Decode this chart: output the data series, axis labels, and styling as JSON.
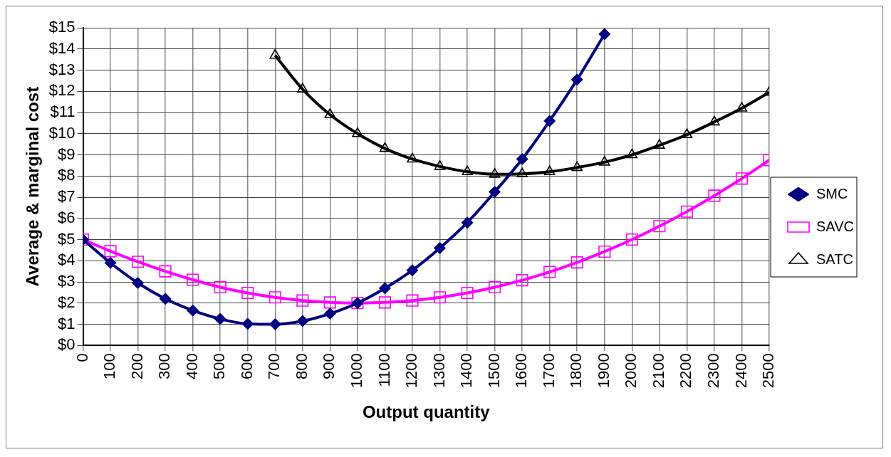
{
  "chart_data": {
    "type": "line",
    "xlabel": "Output quantity",
    "ylabel": "Average & marginal cost",
    "x": [
      0,
      100,
      200,
      300,
      400,
      500,
      600,
      700,
      800,
      900,
      1000,
      1100,
      1200,
      1300,
      1400,
      1500,
      1600,
      1700,
      1800,
      1900,
      2000,
      2100,
      2200,
      2300,
      2400,
      2500
    ],
    "series": [
      {
        "name": "SMC",
        "color": "#000080",
        "marker": "diamond",
        "values": [
          5,
          3.9,
          2.95,
          2.2,
          1.65,
          1.25,
          1.02,
          1,
          1.15,
          1.5,
          2,
          2.7,
          3.55,
          4.6,
          5.8,
          7.25,
          8.8,
          10.6,
          12.55,
          14.7,
          null,
          null,
          null,
          null,
          null,
          null
        ]
      },
      {
        "name": "SAVC",
        "color": "#ff00ff",
        "marker": "square",
        "values": [
          5,
          4.45,
          3.95,
          3.5,
          3.1,
          2.75,
          2.48,
          2.27,
          2.12,
          2.03,
          2,
          2.03,
          2.12,
          2.27,
          2.48,
          2.75,
          3.08,
          3.47,
          3.92,
          4.43,
          5,
          5.63,
          6.32,
          7.07,
          7.88,
          8.75
        ]
      },
      {
        "name": "SATC",
        "color": "#000000",
        "marker": "triangle",
        "values": [
          null,
          null,
          null,
          null,
          null,
          null,
          null,
          13.7,
          12.1,
          10.9,
          10,
          9.3,
          8.8,
          8.45,
          8.2,
          8.08,
          8.1,
          8.2,
          8.4,
          8.65,
          9,
          9.45,
          9.95,
          10.55,
          11.2,
          11.95
        ]
      }
    ],
    "xlim": [
      0,
      2500
    ],
    "xticks": [
      0,
      100,
      200,
      300,
      400,
      500,
      600,
      700,
      800,
      900,
      1000,
      1100,
      1200,
      1300,
      1400,
      1500,
      1600,
      1700,
      1800,
      1900,
      2000,
      2100,
      2200,
      2300,
      2400,
      2500
    ],
    "ylim": [
      0,
      15
    ],
    "yticks": [
      {
        "value": 0,
        "label": "$0"
      },
      {
        "value": 1,
        "label": "$1"
      },
      {
        "value": 2,
        "label": "$2"
      },
      {
        "value": 3,
        "label": "$3"
      },
      {
        "value": 4,
        "label": "$4"
      },
      {
        "value": 5,
        "label": "$5"
      },
      {
        "value": 6,
        "label": "$6"
      },
      {
        "value": 7,
        "label": "$7"
      },
      {
        "value": 8,
        "label": "$8"
      },
      {
        "value": 9,
        "label": "$9"
      },
      {
        "value": 10,
        "label": "$10"
      },
      {
        "value": 11,
        "label": "$11"
      },
      {
        "value": 12,
        "label": "$12"
      },
      {
        "value": 13,
        "label": "$13"
      },
      {
        "value": 14,
        "label": "$14"
      },
      {
        "value": 15,
        "label": "$15"
      }
    ],
    "grid": true,
    "legend": "right"
  }
}
